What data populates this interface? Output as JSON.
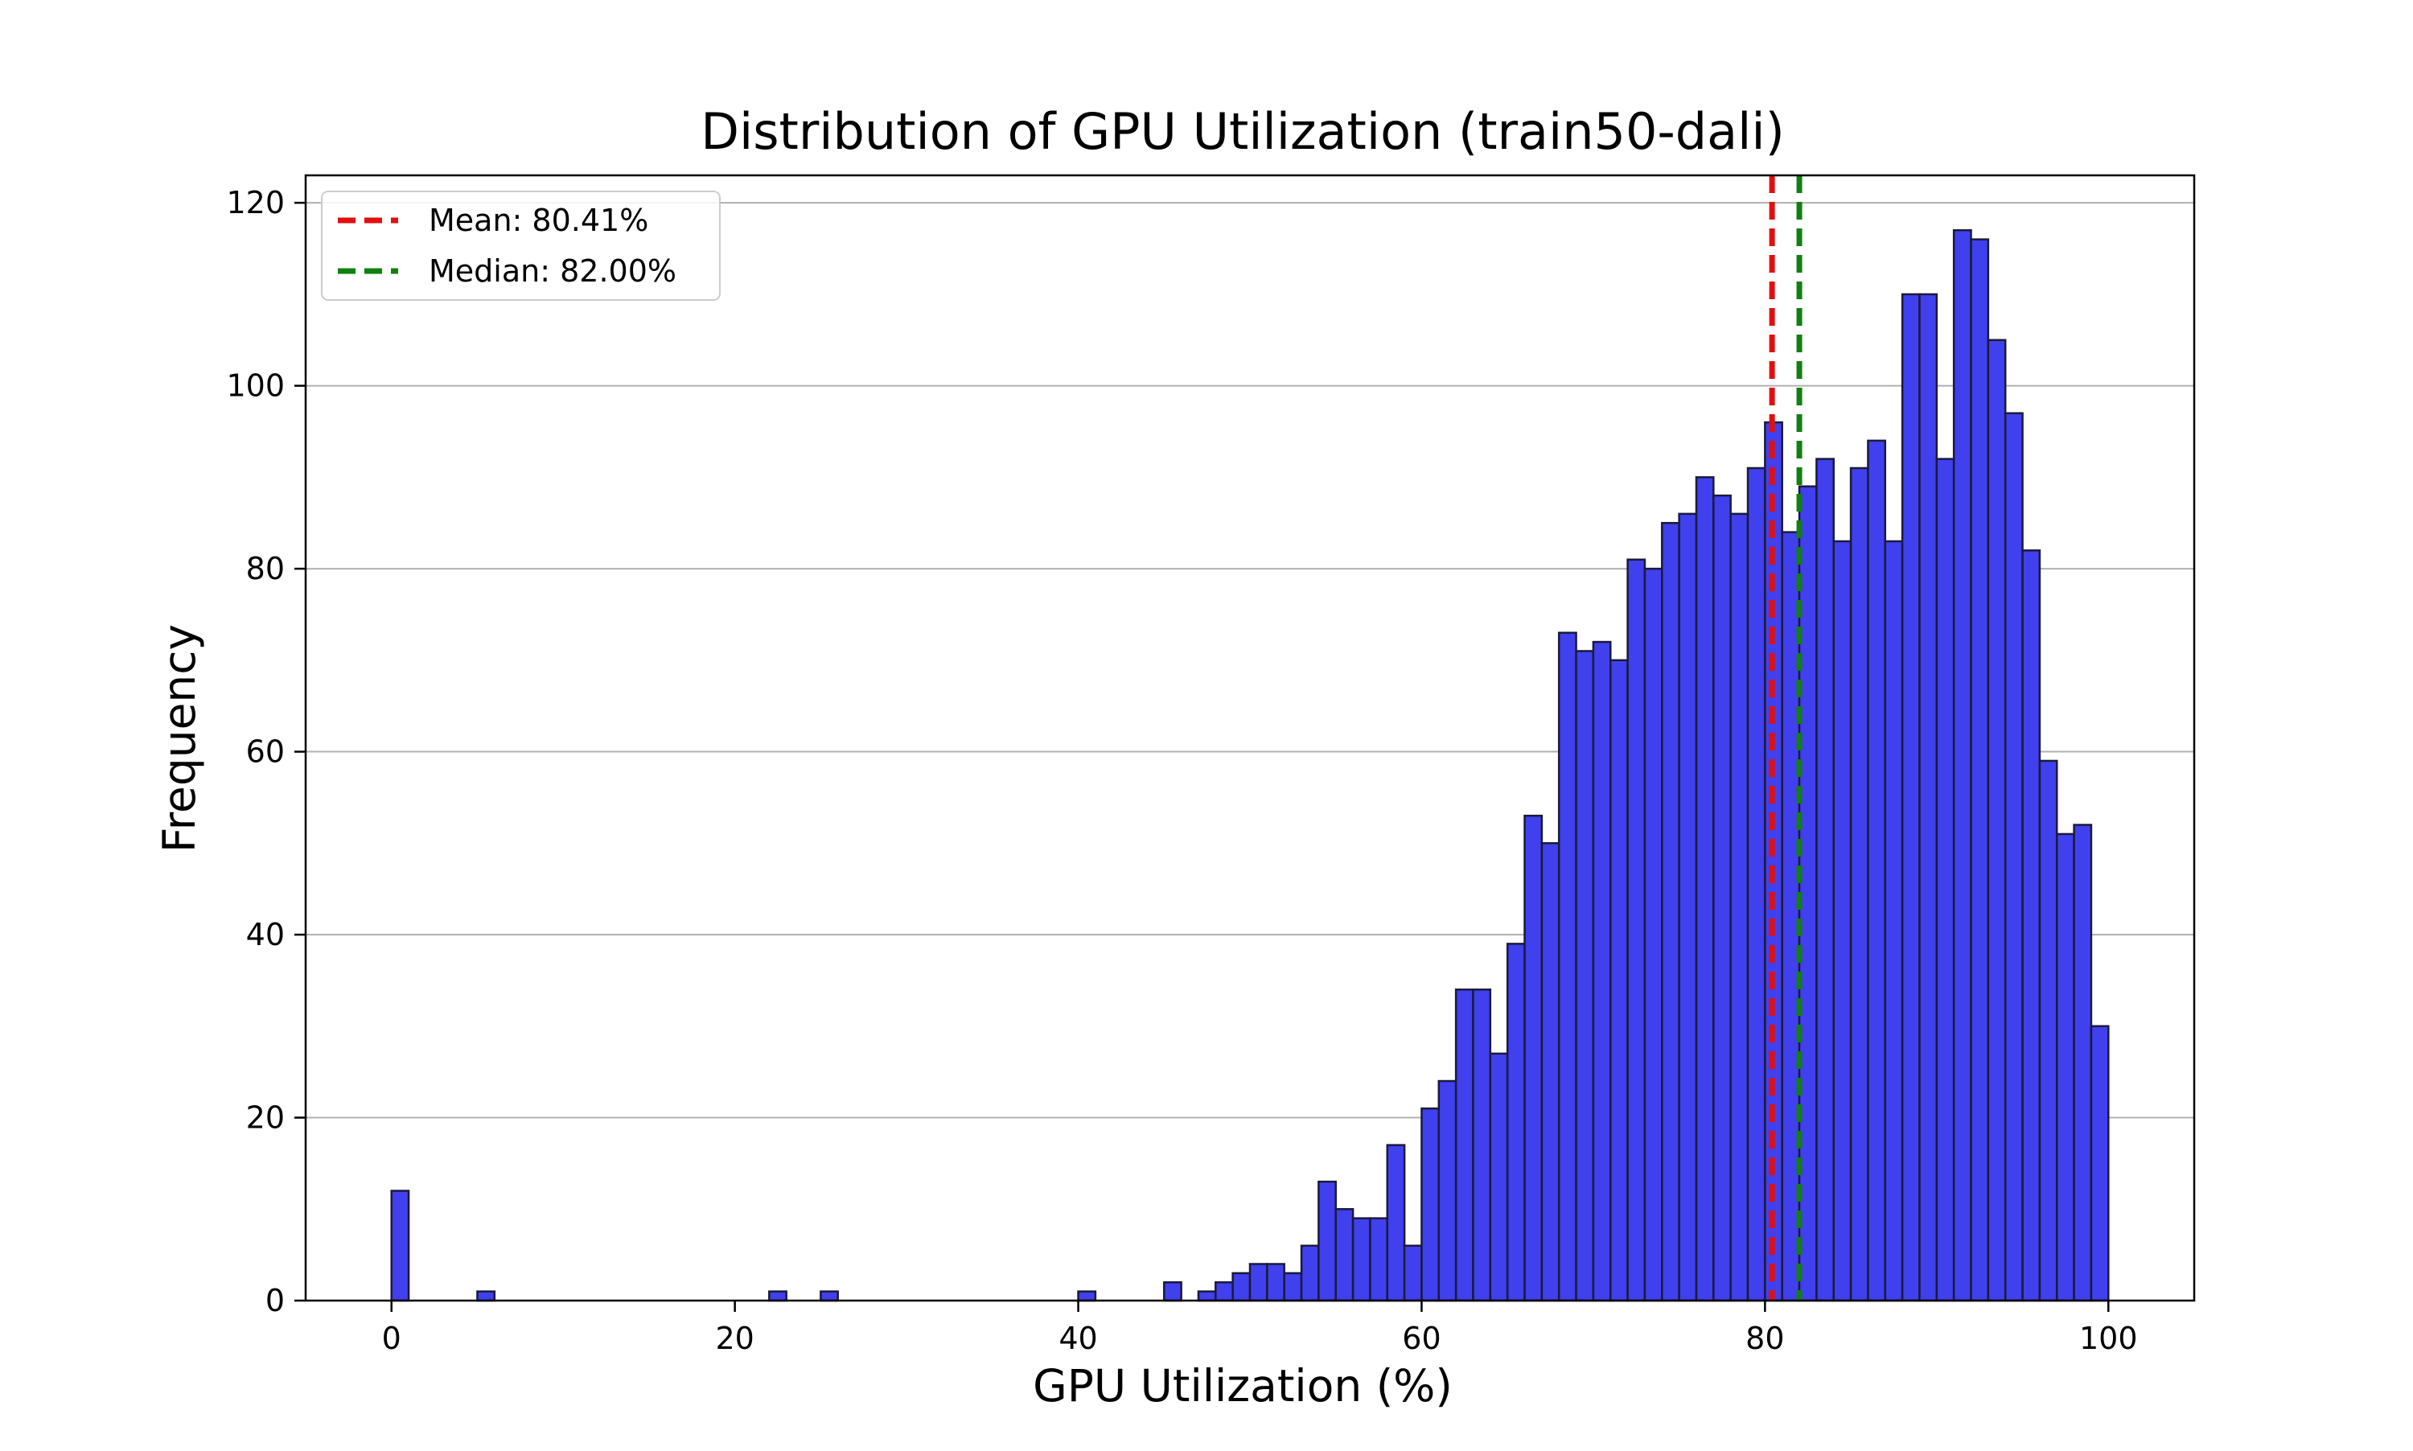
{
  "chart_data": {
    "type": "bar",
    "title": "Distribution of GPU Utilization (train50-dali)",
    "xlabel": "GPU Utilization (%)",
    "ylabel": "Frequency",
    "xlim": [
      -5,
      105
    ],
    "ylim": [
      0,
      123
    ],
    "x_ticks": [
      0,
      20,
      40,
      60,
      80,
      100
    ],
    "y_ticks": [
      0,
      20,
      40,
      60,
      80,
      100,
      120
    ],
    "grid": "horizontal",
    "legend_position": "top-left",
    "bin_start": 0,
    "bin_width": 1,
    "values": [
      12,
      0,
      0,
      0,
      0,
      1,
      0,
      0,
      0,
      0,
      0,
      0,
      0,
      0,
      0,
      0,
      0,
      0,
      0,
      0,
      0,
      0,
      1,
      0,
      0,
      1,
      0,
      0,
      0,
      0,
      0,
      0,
      0,
      0,
      0,
      0,
      0,
      0,
      0,
      0,
      1,
      0,
      0,
      0,
      0,
      2,
      0,
      1,
      2,
      3,
      4,
      4,
      3,
      6,
      13,
      10,
      9,
      9,
      17,
      6,
      21,
      24,
      34,
      34,
      27,
      39,
      53,
      50,
      73,
      71,
      72,
      70,
      81,
      80,
      85,
      86,
      90,
      88,
      86,
      91,
      96,
      84,
      89,
      92,
      83,
      91,
      94,
      83,
      110,
      110,
      92,
      117,
      116,
      105,
      97,
      82,
      59,
      51,
      52,
      30
    ],
    "bar_color": "#4040ee",
    "bar_edge_color": "#1a1a3a",
    "reference_lines": [
      {
        "label": "Mean: 80.41%",
        "x": 80.41,
        "color": "#e01010"
      },
      {
        "label": "Median: 82.00%",
        "x": 82.0,
        "color": "#108010"
      }
    ]
  }
}
